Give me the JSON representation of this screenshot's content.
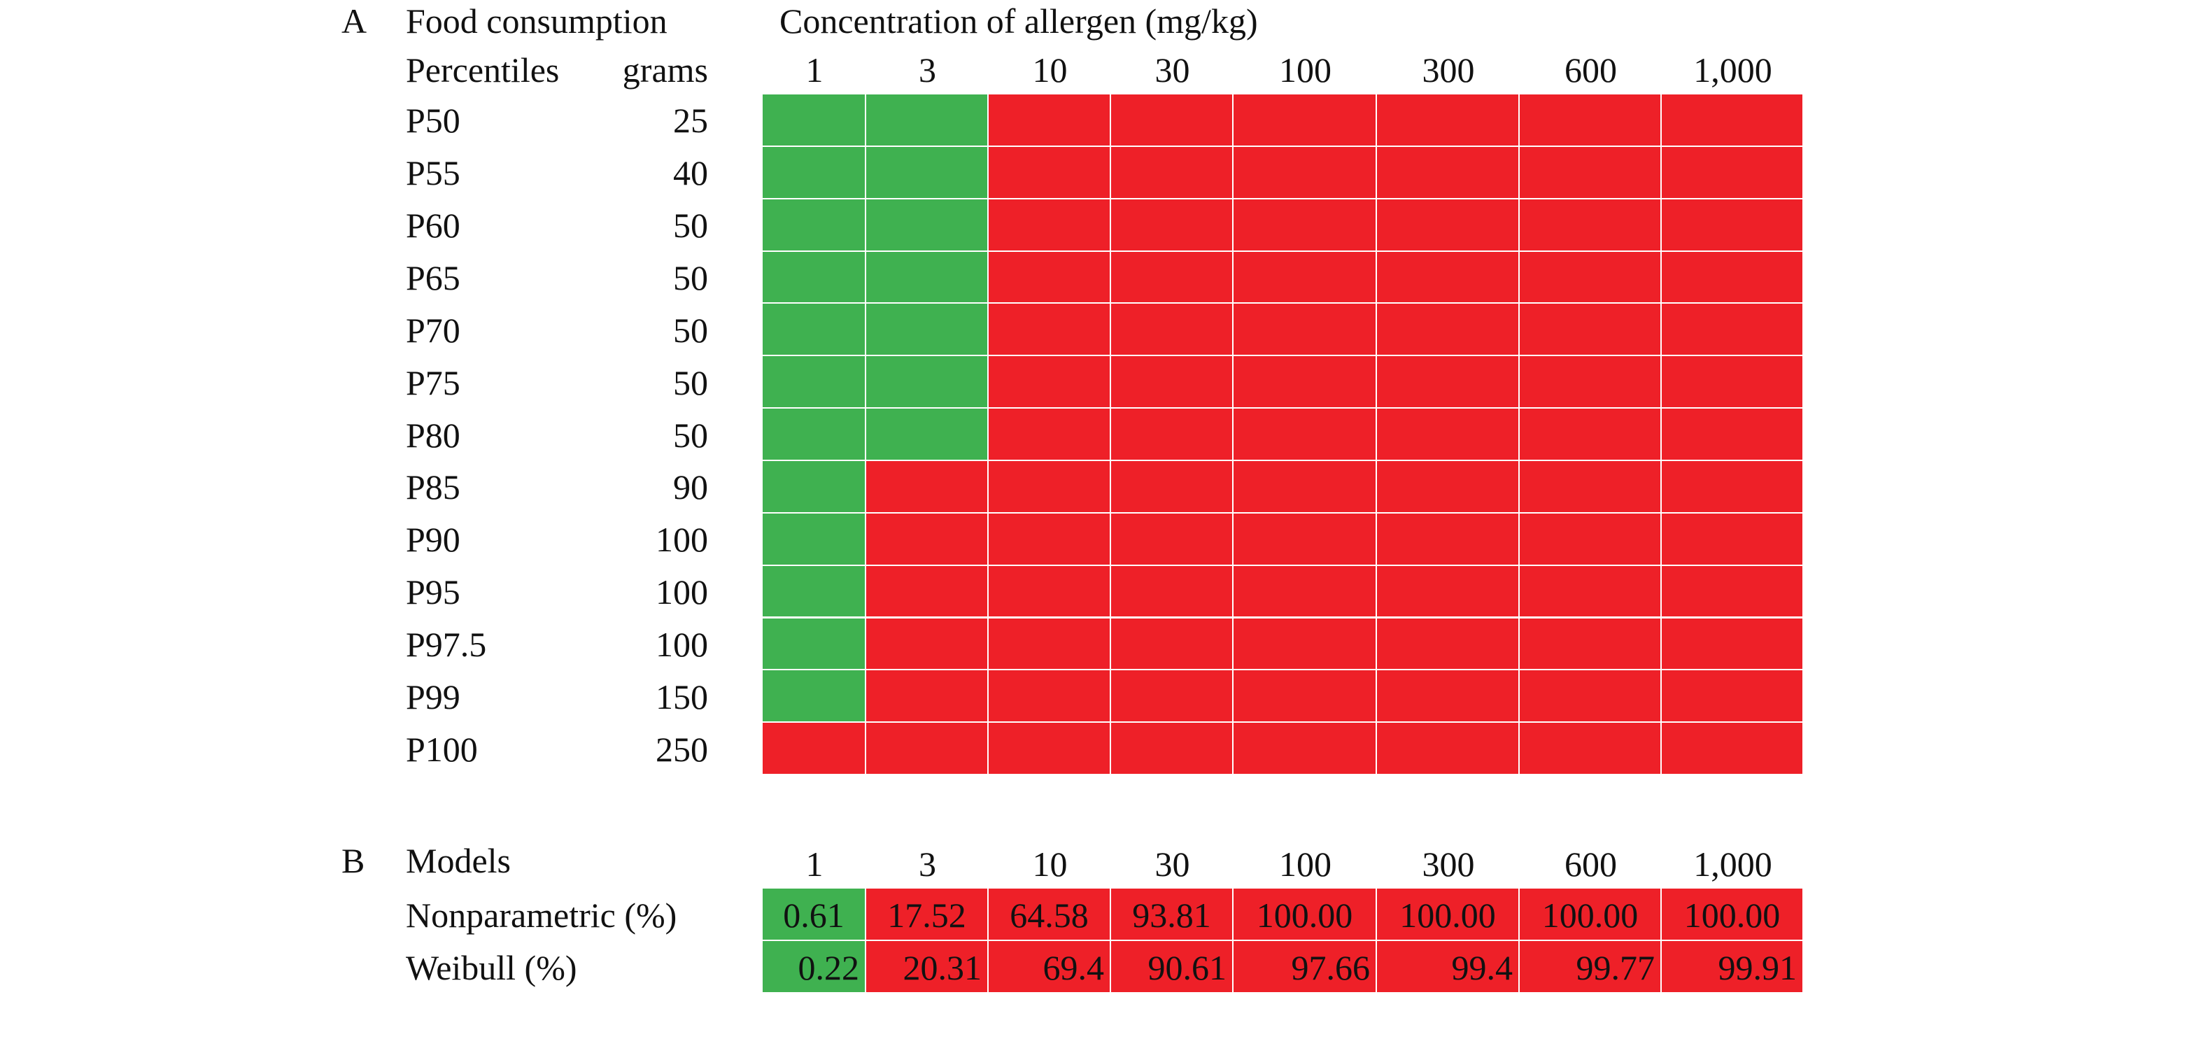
{
  "panel_a": {
    "letter": "A",
    "food_consumption_label": "Food consumption",
    "concentration_label": "Concentration of allergen (mg/kg)",
    "percentiles_label": "Percentiles",
    "grams_label": "grams"
  },
  "panel_b": {
    "letter": "B",
    "models_label": "Models"
  },
  "colors": {
    "safe": "#3fb150",
    "risk": "#ee2028",
    "grid_line": "#ffffff"
  },
  "chart_data": [
    {
      "type": "heatmap",
      "title": "",
      "xlabel": "Concentration of allergen (mg/kg)",
      "x_categories": [
        "1",
        "3",
        "10",
        "30",
        "100",
        "300",
        "600",
        "1,000"
      ],
      "y_label": "Food consumption",
      "rows": [
        {
          "percentile": "P50",
          "grams": "25",
          "cells": [
            "safe",
            "safe",
            "risk",
            "risk",
            "risk",
            "risk",
            "risk",
            "risk"
          ]
        },
        {
          "percentile": "P55",
          "grams": "40",
          "cells": [
            "safe",
            "safe",
            "risk",
            "risk",
            "risk",
            "risk",
            "risk",
            "risk"
          ]
        },
        {
          "percentile": "P60",
          "grams": "50",
          "cells": [
            "safe",
            "safe",
            "risk",
            "risk",
            "risk",
            "risk",
            "risk",
            "risk"
          ]
        },
        {
          "percentile": "P65",
          "grams": "50",
          "cells": [
            "safe",
            "safe",
            "risk",
            "risk",
            "risk",
            "risk",
            "risk",
            "risk"
          ]
        },
        {
          "percentile": "P70",
          "grams": "50",
          "cells": [
            "safe",
            "safe",
            "risk",
            "risk",
            "risk",
            "risk",
            "risk",
            "risk"
          ]
        },
        {
          "percentile": "P75",
          "grams": "50",
          "cells": [
            "safe",
            "safe",
            "risk",
            "risk",
            "risk",
            "risk",
            "risk",
            "risk"
          ]
        },
        {
          "percentile": "P80",
          "grams": "50",
          "cells": [
            "safe",
            "safe",
            "risk",
            "risk",
            "risk",
            "risk",
            "risk",
            "risk"
          ]
        },
        {
          "percentile": "P85",
          "grams": "90",
          "cells": [
            "safe",
            "risk",
            "risk",
            "risk",
            "risk",
            "risk",
            "risk",
            "risk"
          ]
        },
        {
          "percentile": "P90",
          "grams": "100",
          "cells": [
            "safe",
            "risk",
            "risk",
            "risk",
            "risk",
            "risk",
            "risk",
            "risk"
          ]
        },
        {
          "percentile": "P95",
          "grams": "100",
          "cells": [
            "safe",
            "risk",
            "risk",
            "risk",
            "risk",
            "risk",
            "risk",
            "risk"
          ]
        },
        {
          "percentile": "P97.5",
          "grams": "100",
          "cells": [
            "safe",
            "risk",
            "risk",
            "risk",
            "risk",
            "risk",
            "risk",
            "risk"
          ]
        },
        {
          "percentile": "P99",
          "grams": "150",
          "cells": [
            "safe",
            "risk",
            "risk",
            "risk",
            "risk",
            "risk",
            "risk",
            "risk"
          ]
        },
        {
          "percentile": "P100",
          "grams": "250",
          "cells": [
            "risk",
            "risk",
            "risk",
            "risk",
            "risk",
            "risk",
            "risk",
            "risk"
          ]
        }
      ]
    },
    {
      "type": "table",
      "title": "",
      "x_categories": [
        "1",
        "3",
        "10",
        "30",
        "100",
        "300",
        "600",
        "1,000"
      ],
      "rows": [
        {
          "model": "Nonparametric (%)",
          "values": [
            "0.61",
            "17.52",
            "64.58",
            "93.81",
            "100.00",
            "100.00",
            "100.00",
            "100.00"
          ],
          "cells": [
            "safe",
            "risk",
            "risk",
            "risk",
            "risk",
            "risk",
            "risk",
            "risk"
          ],
          "align": "center"
        },
        {
          "model": "Weibull (%)",
          "values": [
            "0.22",
            "20.31",
            "69.4",
            "90.61",
            "97.66",
            "99.4",
            "99.77",
            "99.91"
          ],
          "cells": [
            "safe",
            "risk",
            "risk",
            "risk",
            "risk",
            "risk",
            "risk",
            "risk"
          ],
          "align": "right"
        }
      ]
    }
  ]
}
